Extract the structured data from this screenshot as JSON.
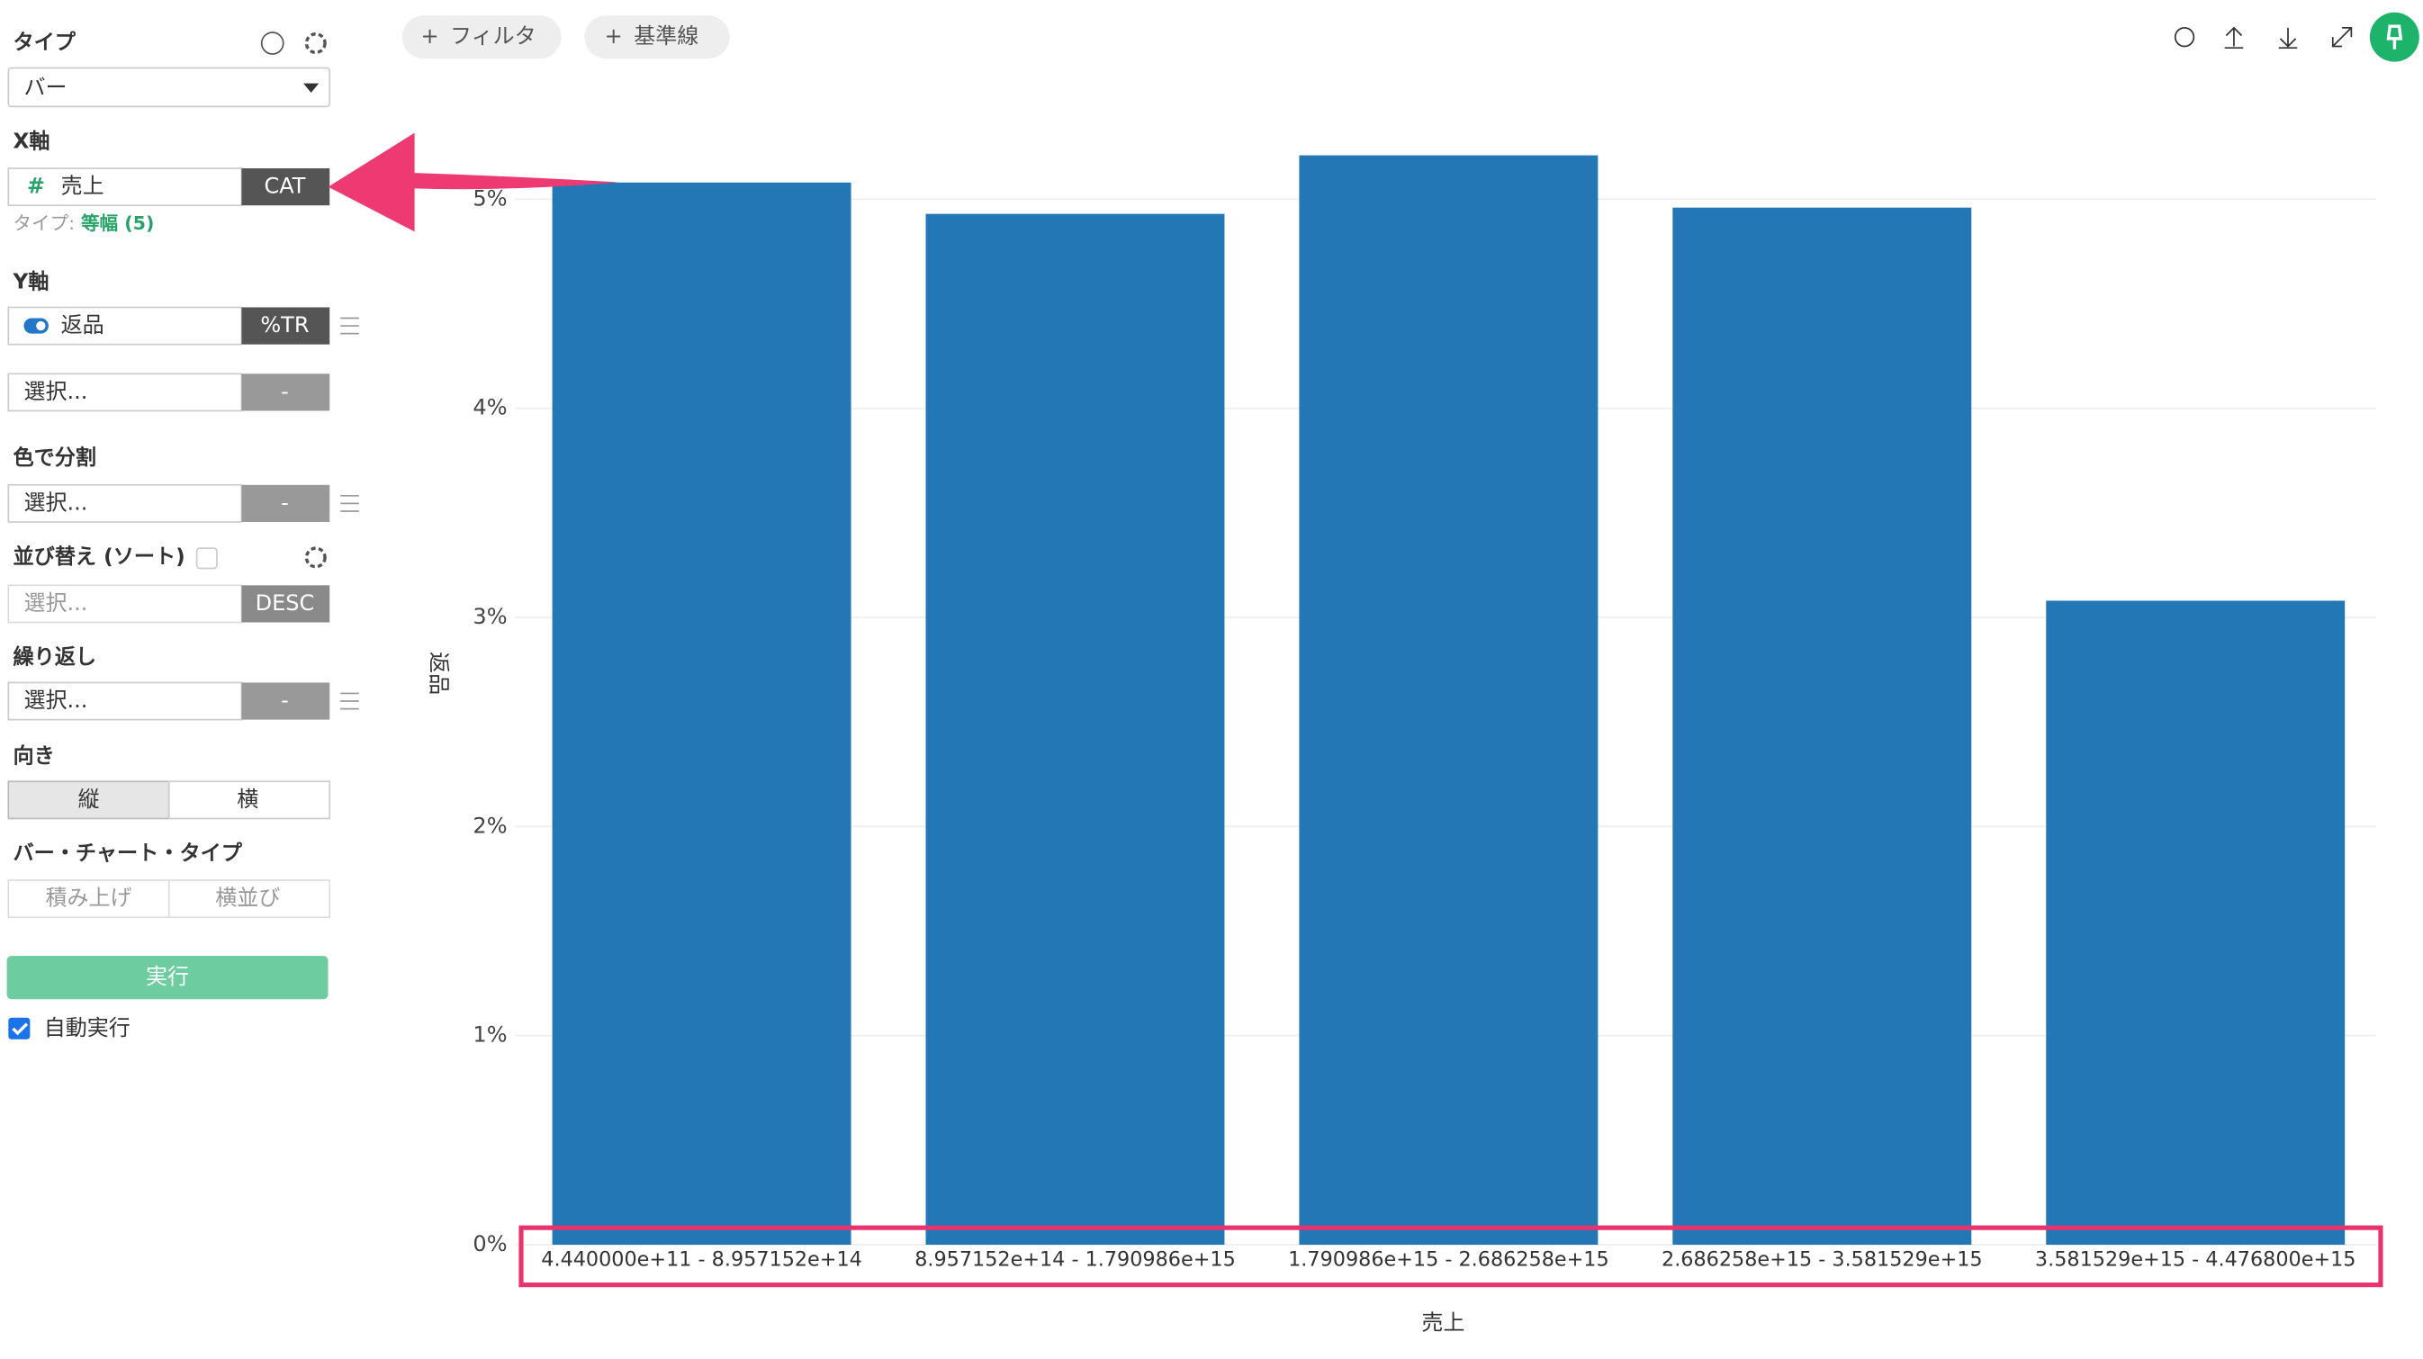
{
  "sidebar": {
    "type_label": "タイプ",
    "type_value": "バー",
    "x_axis_label": "X軸",
    "x_field": "売上",
    "x_mode": "CAT",
    "x_type_prefix": "タイプ:",
    "x_type_value": "等幅 (5)",
    "y_axis_label": "Y軸",
    "y_field": "返品",
    "y_mode": "%TR",
    "y_field2": "選択...",
    "y_mode2": "-",
    "color_label": "色で分割",
    "color_field": "選択...",
    "color_mode": "-",
    "sort_label": "並び替え (ソート)",
    "sort_field": "選択...",
    "sort_mode": "DESC",
    "repeat_label": "繰り返し",
    "repeat_field": "選択...",
    "repeat_mode": "-",
    "orientation_label": "向き",
    "orientation_options": [
      "縦",
      "横"
    ],
    "bar_type_label": "バー・チャート・タイプ",
    "bar_type_options": [
      "積み上げ",
      "横並び"
    ],
    "run_button": "実行",
    "auto_run": "自動実行"
  },
  "toolbar": {
    "buttons": [
      "フィルタ",
      "基準線"
    ]
  },
  "chart_data": {
    "type": "bar",
    "x_label": "売上",
    "y_label": "返品",
    "categories": [
      "4.440000e+11 - 8.957152e+14",
      "8.957152e+14 - 1.790986e+15",
      "1.790986e+15 - 2.686258e+15",
      "2.686258e+15 - 3.581529e+15",
      "3.581529e+15 - 4.476800e+15"
    ],
    "values": [
      5.08,
      4.93,
      5.21,
      4.96,
      3.08
    ],
    "color": "#2277b4",
    "ylim": [
      0,
      5.3
    ],
    "yticks": [
      {
        "value": 0,
        "label": "0%"
      },
      {
        "value": 1,
        "label": "1%"
      },
      {
        "value": 2,
        "label": "2%"
      },
      {
        "value": 3,
        "label": "3%"
      },
      {
        "value": 4,
        "label": "4%"
      },
      {
        "value": 5,
        "label": "5%"
      }
    ],
    "grid": true
  }
}
